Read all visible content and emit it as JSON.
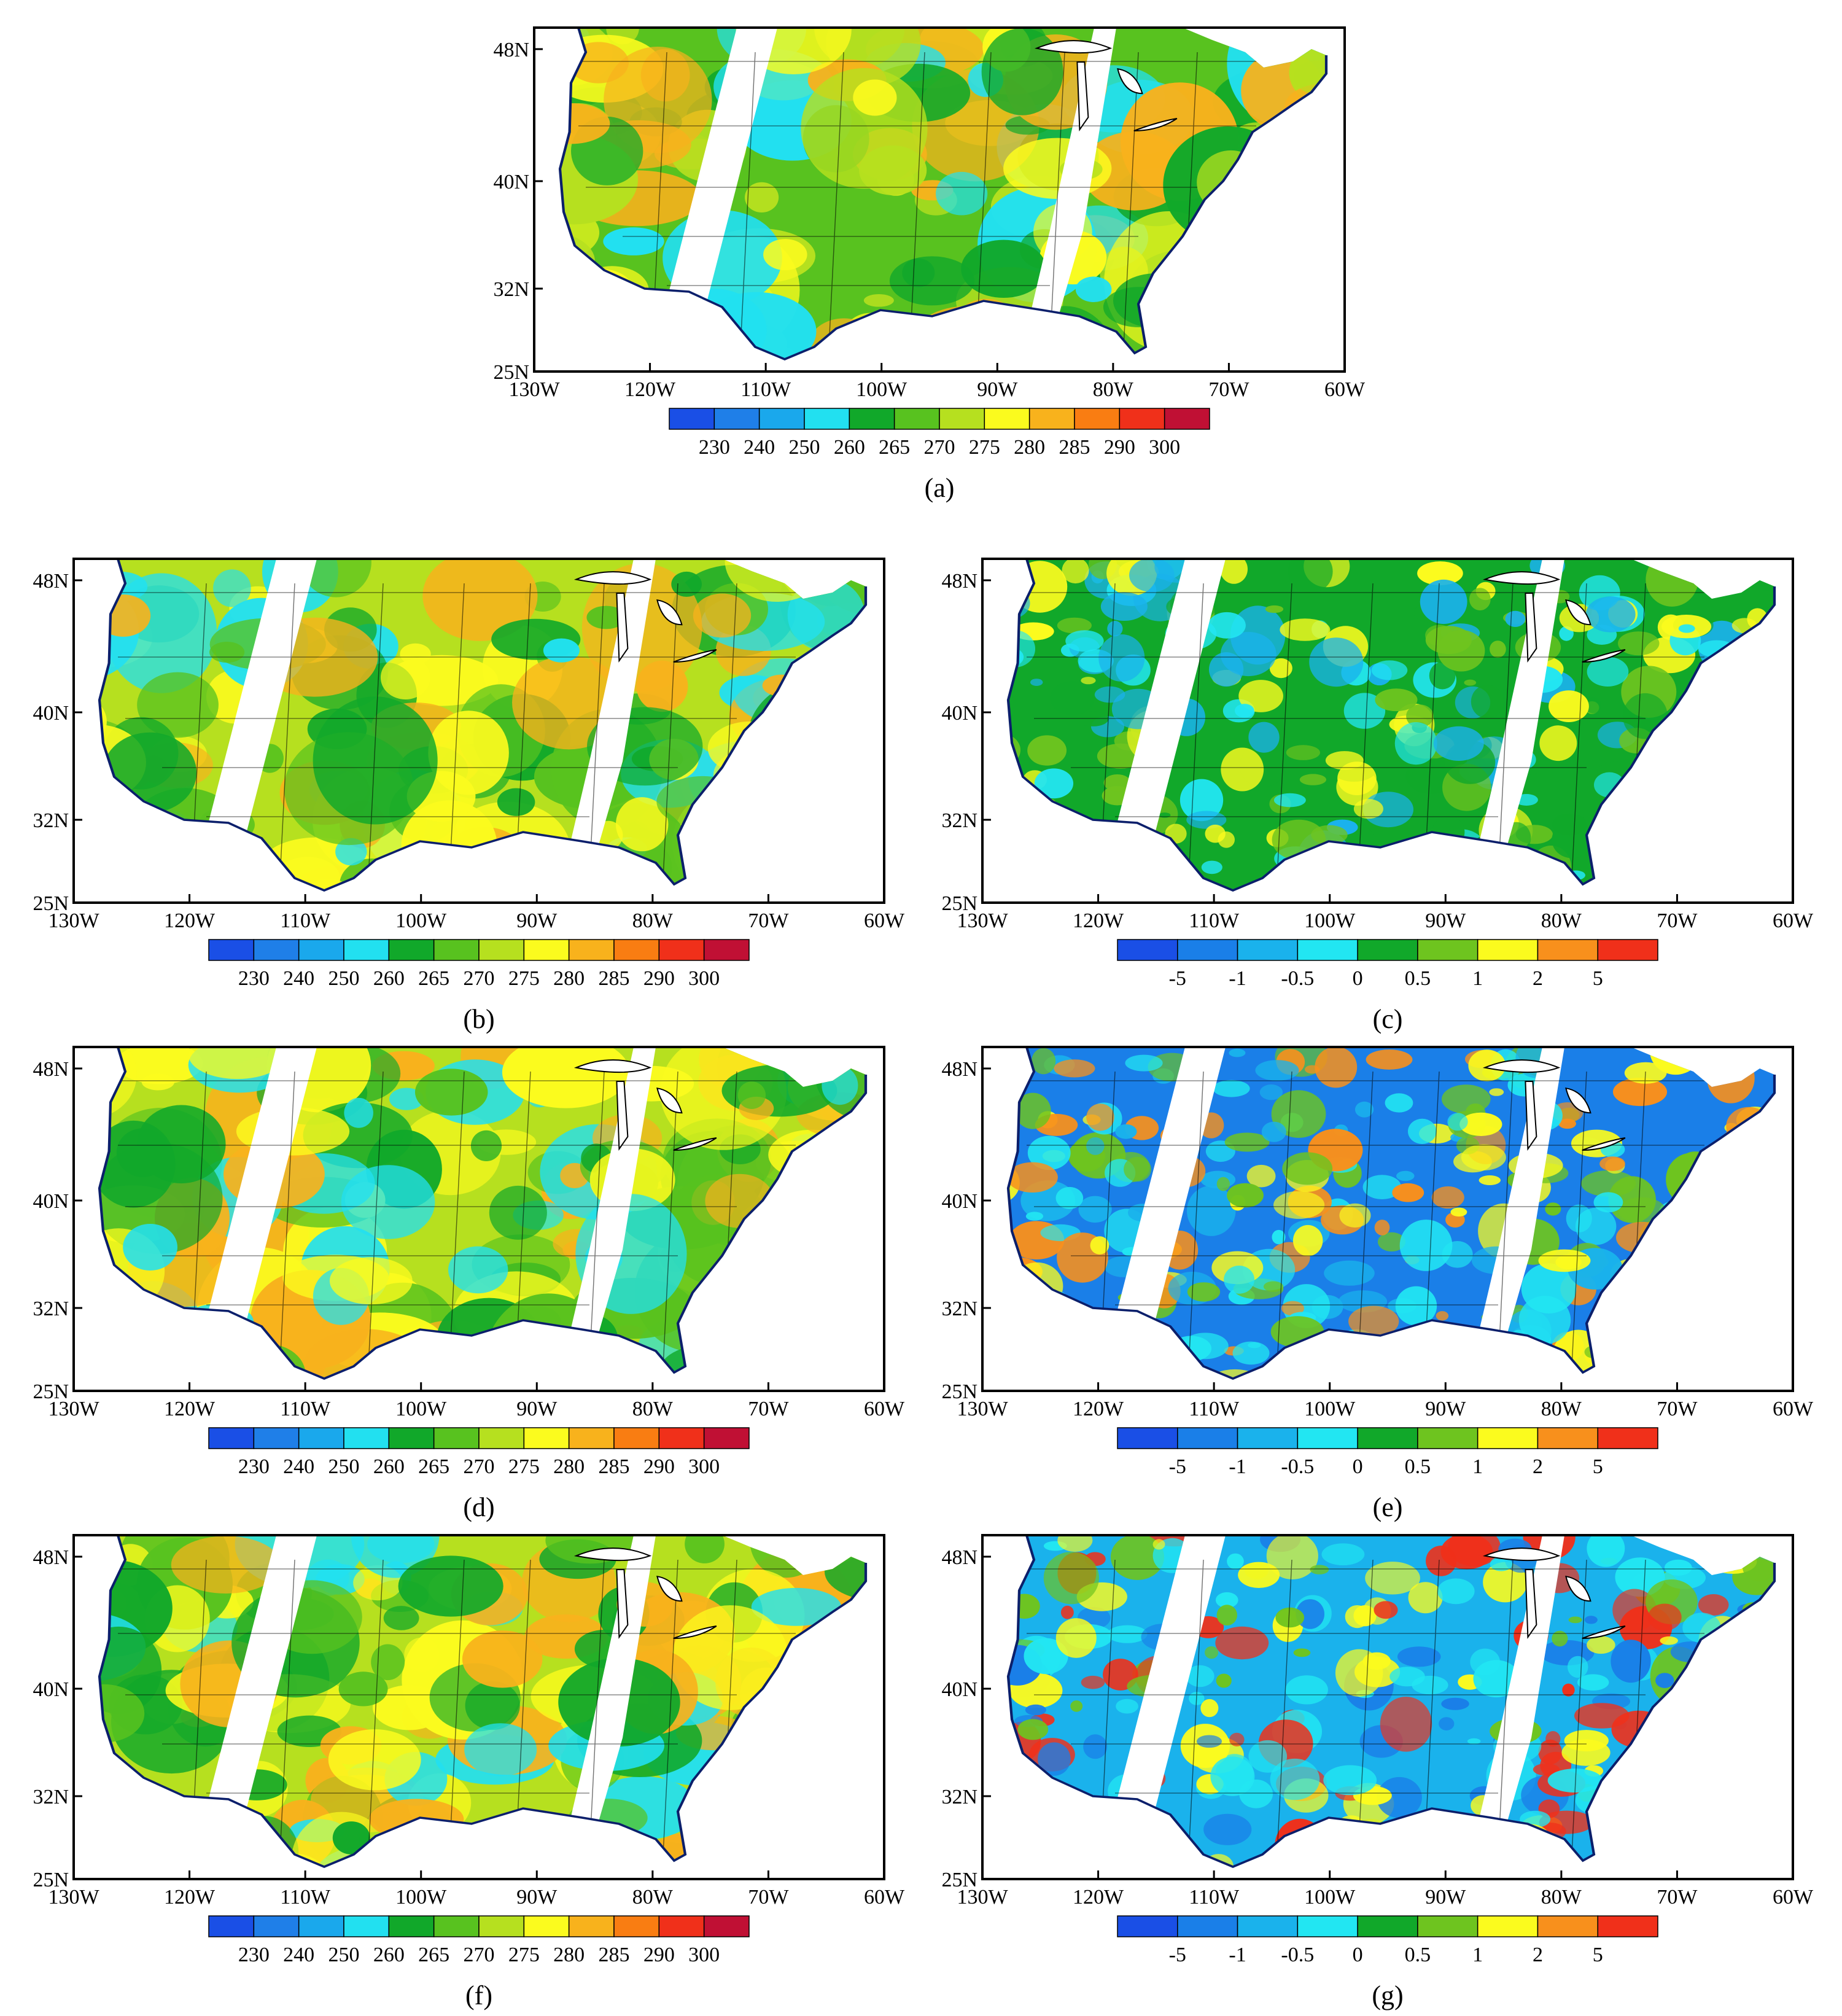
{
  "figure": {
    "lon_ticks": [
      "130W",
      "120W",
      "110W",
      "100W",
      "90W",
      "80W",
      "70W",
      "60W"
    ],
    "lat_ticks": [
      "48N",
      "40N",
      "32N",
      "25N"
    ],
    "colors": {
      "land_mid": "#a8d62a",
      "coast": "#0b1f6b",
      "swath": "#ffffff",
      "border": "#000000"
    }
  },
  "colorbars": {
    "temperature": {
      "labels": [
        "230",
        "240",
        "250",
        "260",
        "265",
        "270",
        "275",
        "280",
        "285",
        "290",
        "300"
      ],
      "colors": [
        "#1a4fe6",
        "#1f7fe8",
        "#1aa8ec",
        "#22e0f0",
        "#11a82a",
        "#58c21f",
        "#b6e01f",
        "#fbfb1e",
        "#f8b21c",
        "#f97d12",
        "#f0301a",
        "#c01034"
      ]
    },
    "difference": {
      "labels": [
        "-5",
        "-1",
        "-0.5",
        "0",
        "0.5",
        "1",
        "2",
        "5"
      ],
      "colors": [
        "#1a4fe6",
        "#1a7fe8",
        "#1ab2ec",
        "#22e6f2",
        "#11a82a",
        "#6ec41f",
        "#fbfb1e",
        "#f8901c",
        "#f0301a"
      ]
    }
  },
  "panels": [
    {
      "id": "a",
      "label": "(a)",
      "kind": "temperature",
      "palette": [
        "#58c21f",
        "#b6e01f",
        "#fbfb1e",
        "#f8b21c",
        "#11a82a",
        "#22e0f0"
      ]
    },
    {
      "id": "b",
      "label": "(b)",
      "kind": "temperature",
      "palette": [
        "#b6e01f",
        "#58c21f",
        "#fbfb1e",
        "#f8b21c",
        "#11a82a",
        "#22e0f0"
      ]
    },
    {
      "id": "c",
      "label": "(c)",
      "kind": "difference",
      "palette": [
        "#11a82a",
        "#22e6f2",
        "#1ab2ec",
        "#6ec41f",
        "#11a82a",
        "#fbfb1e"
      ]
    },
    {
      "id": "d",
      "label": "(d)",
      "kind": "temperature",
      "palette": [
        "#b6e01f",
        "#fbfb1e",
        "#58c21f",
        "#f8b21c",
        "#11a82a",
        "#22e0f0"
      ]
    },
    {
      "id": "e",
      "label": "(e)",
      "kind": "difference",
      "palette": [
        "#1a7fe8",
        "#1ab2ec",
        "#fbfb1e",
        "#f8901c",
        "#6ec41f",
        "#22e6f2"
      ]
    },
    {
      "id": "f",
      "label": "(f)",
      "kind": "temperature",
      "palette": [
        "#b6e01f",
        "#58c21f",
        "#fbfb1e",
        "#f8b21c",
        "#11a82a",
        "#22e0f0"
      ]
    },
    {
      "id": "g",
      "label": "(g)",
      "kind": "difference",
      "palette": [
        "#1ab2ec",
        "#22e6f2",
        "#1a7fe8",
        "#fbfb1e",
        "#f0301a",
        "#6ec41f"
      ]
    }
  ]
}
